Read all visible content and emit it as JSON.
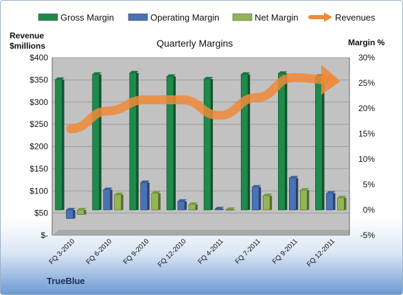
{
  "chart_data": {
    "type": "bar",
    "title": "Quarterly Margins",
    "categories": [
      "FQ 3-2010",
      "FQ 6-2010",
      "FQ 9-2010",
      "FQ 12-2010",
      "FQ 4-2011",
      "FQ 7-2011",
      "FQ 9-2011",
      "FQ 12-2011"
    ],
    "left_axis": {
      "label": "Revenue $millions",
      "range": [
        0,
        400
      ],
      "ticks": [
        "$-",
        "$50",
        "$100",
        "$150",
        "$200",
        "$250",
        "$300",
        "$350",
        "$400"
      ]
    },
    "right_axis": {
      "label": "Margin %",
      "range": [
        -5,
        30
      ],
      "ticks": [
        "-5%",
        "0%",
        "5%",
        "10%",
        "15%",
        "20%",
        "25%",
        "30%"
      ]
    },
    "series": [
      {
        "name": "Gross Margin",
        "axis": "right",
        "kind": "bar",
        "values": [
          25.7,
          26.7,
          27.0,
          26.3,
          25.8,
          26.7,
          26.9,
          26.3
        ]
      },
      {
        "name": "Operating Margin",
        "axis": "right",
        "kind": "bar",
        "values": [
          -1.7,
          4.0,
          5.4,
          1.7,
          0.2,
          4.5,
          6.3,
          3.3
        ]
      },
      {
        "name": "Net Margin",
        "axis": "right",
        "kind": "bar",
        "values": [
          -0.9,
          3.0,
          3.3,
          1.1,
          0.1,
          2.8,
          3.9,
          2.4
        ]
      },
      {
        "name": "Revenues",
        "axis": "left",
        "kind": "line",
        "values": [
          240,
          280,
          305,
          305,
          270,
          310,
          355,
          350
        ]
      }
    ],
    "legend_position": "top",
    "grid": true
  },
  "colors": {
    "gross": "#1e8a4b",
    "operating": "#4a72b5",
    "net": "#93b553",
    "revenues": "#ee8a3a",
    "plot_bg": "#c2c2c2"
  },
  "branding": {
    "company": "TrueBlue"
  }
}
